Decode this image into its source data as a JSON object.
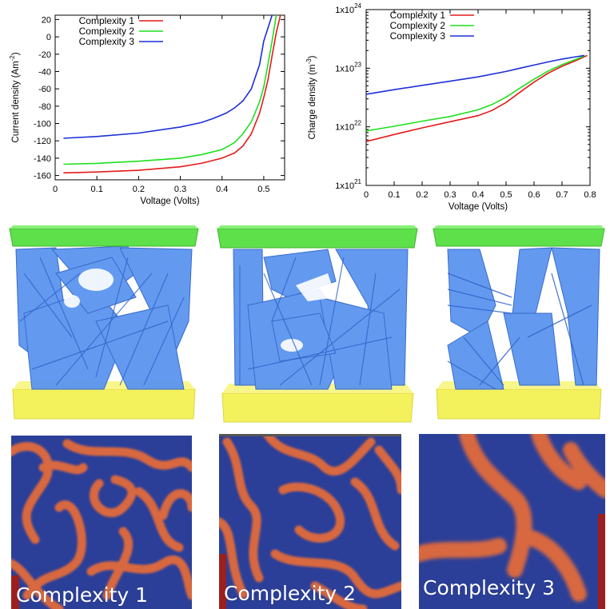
{
  "chart_data": [
    {
      "type": "line",
      "xlabel": "Voltage (Volts)",
      "ylabel": "Current density (Am",
      "ylabel_sup": "-2",
      "ylabel_end": ")",
      "xlim": [
        0,
        0.55
      ],
      "ylim": [
        -165,
        25
      ],
      "xticks": [
        "0",
        "0.1",
        "0.2",
        "0.3",
        "0.4",
        "0.5"
      ],
      "xtick_values": [
        0,
        0.1,
        0.2,
        0.3,
        0.4,
        0.5
      ],
      "yticks": [
        "20",
        "0",
        "-20",
        "-40",
        "-60",
        "-80",
        "-100",
        "-120",
        "-140",
        "-160"
      ],
      "ytick_values": [
        20,
        0,
        -20,
        -40,
        -60,
        -80,
        -100,
        -120,
        -140,
        -160
      ],
      "legend_position": "top-left",
      "grid": false,
      "series": [
        {
          "name": "Complexity 1",
          "color": "#e41a1c",
          "x": [
            0.02,
            0.1,
            0.2,
            0.3,
            0.35,
            0.4,
            0.43,
            0.45,
            0.47,
            0.49,
            0.5,
            0.51,
            0.52,
            0.53,
            0.54
          ],
          "y": [
            -157,
            -156,
            -154,
            -150,
            -146,
            -140,
            -134,
            -126,
            -112,
            -88,
            -70,
            -50,
            -22,
            5,
            25
          ]
        },
        {
          "name": "Complexity 2",
          "color": "#1ee01e",
          "x": [
            0.02,
            0.1,
            0.2,
            0.3,
            0.35,
            0.4,
            0.43,
            0.45,
            0.47,
            0.49,
            0.5,
            0.51,
            0.52,
            0.53
          ],
          "y": [
            -147,
            -146,
            -143.5,
            -140,
            -136,
            -130,
            -122,
            -112,
            -98,
            -75,
            -58,
            -32,
            -5,
            25
          ]
        },
        {
          "name": "Complexity 3",
          "color": "#1c2fd6",
          "x": [
            0.02,
            0.1,
            0.2,
            0.3,
            0.35,
            0.38,
            0.41,
            0.43,
            0.45,
            0.47,
            0.49,
            0.5,
            0.51,
            0.52
          ],
          "y": [
            -117,
            -115,
            -111,
            -104,
            -99,
            -94,
            -88,
            -82,
            -74,
            -60,
            -32,
            -5,
            10,
            25
          ]
        }
      ]
    },
    {
      "type": "line",
      "scale_y": "log",
      "xlabel": "Voltage (Volts)",
      "ylabel": "Charge density (m",
      "ylabel_sup": "-3",
      "ylabel_end": ")",
      "xlim": [
        0,
        0.8
      ],
      "ylim_log10": [
        21,
        24
      ],
      "xticks": [
        "0",
        "0.1",
        "0.2",
        "0.3",
        "0.4",
        "0.5",
        "0.6",
        "0.7",
        "0.8"
      ],
      "xtick_values": [
        0,
        0.1,
        0.2,
        0.3,
        0.4,
        0.5,
        0.6,
        0.7,
        0.8
      ],
      "yticks": [
        {
          "base": "1x10",
          "exp": "24",
          "log": 24
        },
        {
          "base": "1x10",
          "exp": "23",
          "log": 23
        },
        {
          "base": "1x10",
          "exp": "22",
          "log": 22
        },
        {
          "base": "1x10",
          "exp": "21",
          "log": 21
        }
      ],
      "legend_position": "top-left",
      "grid": false,
      "series": [
        {
          "name": "Complexity 1",
          "color": "#e41a1c",
          "x": [
            0,
            0.1,
            0.2,
            0.3,
            0.4,
            0.45,
            0.5,
            0.55,
            0.6,
            0.65,
            0.7,
            0.75,
            0.79
          ],
          "y": [
            5.6e+21,
            7.4e+21,
            9.6e+21,
            1.22e+22,
            1.55e+22,
            1.9e+22,
            2.6e+22,
            3.9e+22,
            5.8e+22,
            8.2e+22,
            1.08e+23,
            1.35e+23,
            1.65e+23
          ]
        },
        {
          "name": "Complexity 2",
          "color": "#1ee01e",
          "x": [
            0,
            0.1,
            0.2,
            0.3,
            0.4,
            0.45,
            0.5,
            0.55,
            0.6,
            0.65,
            0.7,
            0.75,
            0.78
          ],
          "y": [
            8.5e+21,
            1.02e+22,
            1.25e+22,
            1.5e+22,
            1.95e+22,
            2.4e+22,
            3.2e+22,
            4.6e+22,
            6.5e+22,
            8.9e+22,
            1.15e+23,
            1.42e+23,
            1.62e+23
          ]
        },
        {
          "name": "Complexity 3",
          "color": "#1c2fd6",
          "x": [
            0,
            0.1,
            0.2,
            0.3,
            0.4,
            0.5,
            0.55,
            0.6,
            0.65,
            0.7,
            0.75,
            0.78
          ],
          "y": [
            3.6e+22,
            4.3e+22,
            5.1e+22,
            6e+22,
            7.1e+22,
            8.8e+22,
            1e+23,
            1.13e+23,
            1.28e+23,
            1.43e+23,
            1.57e+23,
            1.65e+23
          ]
        }
      ]
    }
  ],
  "structures": [
    {
      "name": "structure-complexity-1",
      "top_color": "#5ee04a",
      "bottom_color": "#f5f25a",
      "network_color": "#5b95f0"
    },
    {
      "name": "structure-complexity-2",
      "top_color": "#5ee04a",
      "bottom_color": "#f5f25a",
      "network_color": "#5b95f0"
    },
    {
      "name": "structure-complexity-3",
      "top_color": "#5ee04a",
      "bottom_color": "#f5f25a",
      "network_color": "#5b95f0"
    }
  ],
  "morphologies": [
    {
      "caption": "Complexity 1",
      "background": "#2b3f98",
      "stripe": "#d8683f"
    },
    {
      "caption": "Complexity 2",
      "background": "#2b3f98",
      "stripe": "#d8683f"
    },
    {
      "caption": "Complexity 3",
      "background": "#2b3f98",
      "stripe": "#d8683f"
    }
  ]
}
